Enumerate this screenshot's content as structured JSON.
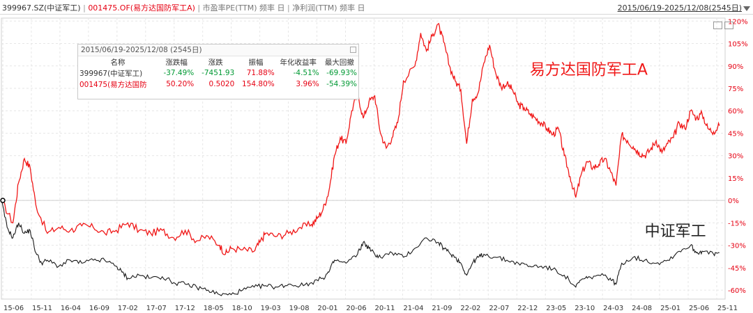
{
  "header": {
    "code1": "399967.SZ(中证军工)",
    "sep": "|",
    "code2": "001475.OF(易方达国防军工A)",
    "metric1": "市盈率PE(TTM) 频率 日",
    "metric2": "净利润(TTM) 频率 日",
    "range": "2015/06/19-2025/12/08(2545日)"
  },
  "stats_panel": {
    "title": "2015/06/19-2025/12/08 (2545日)",
    "columns": [
      "名称",
      "涨跌幅",
      "涨跌",
      "振幅",
      "年化收益率",
      "最大回撤"
    ],
    "rows": [
      {
        "name": "399967(中证军工)",
        "change_pct": "-37.49%",
        "change": "-7451.93",
        "amplitude": "71.88%",
        "annual": "-4.51%",
        "drawdown": "-69.93%"
      },
      {
        "name": "001475(易方达国防",
        "change_pct": "50.20%",
        "change": "0.5020",
        "amplitude": "154.80%",
        "annual": "3.96%",
        "drawdown": "-54.39%"
      }
    ]
  },
  "colors": {
    "fund": "#f01818",
    "index": "#1a1a1a",
    "grid": "#e6e6e6",
    "axis_text": "#e60012",
    "neg": "#009933"
  },
  "chart_data": {
    "type": "line",
    "title": "",
    "xlabel": "",
    "ylabel": "",
    "ylim": [
      -66,
      122
    ],
    "y_ticks": [
      "120%",
      "105%",
      "90%",
      "75%",
      "60%",
      "45%",
      "30%",
      "15%",
      "0%",
      "-15%",
      "-30%",
      "-45%",
      "-60%"
    ],
    "y_tick_values": [
      120,
      105,
      90,
      75,
      60,
      45,
      30,
      15,
      0,
      -15,
      -30,
      -45,
      -60
    ],
    "x_ticks": [
      "15-06",
      "15-11",
      "16-04",
      "16-09",
      "17-02",
      "17-07",
      "17-12",
      "18-05",
      "18-10",
      "19-03",
      "19-08",
      "20-01",
      "20-06",
      "20-11",
      "21-04",
      "21-09",
      "22-02",
      "22-07",
      "22-12",
      "23-05",
      "23-10",
      "24-03",
      "24-08",
      "25-01",
      "25-06",
      "25-11"
    ],
    "x_range": [
      0,
      126
    ],
    "grid": true,
    "series": [
      {
        "name": "易方达国防军工A",
        "label": "易方达国防军工A",
        "points": [
          [
            0,
            0
          ],
          [
            2,
            -15
          ],
          [
            3,
            12
          ],
          [
            4,
            28
          ],
          [
            5,
            22
          ],
          [
            6,
            -3
          ],
          [
            8,
            -22
          ],
          [
            10,
            -18
          ],
          [
            12,
            -20
          ],
          [
            14,
            -17
          ],
          [
            16,
            -18
          ],
          [
            18,
            -22
          ],
          [
            20,
            -20
          ],
          [
            22,
            -15
          ],
          [
            24,
            -20
          ],
          [
            26,
            -22
          ],
          [
            28,
            -20
          ],
          [
            30,
            -25
          ],
          [
            32,
            -20
          ],
          [
            34,
            -27
          ],
          [
            36,
            -24
          ],
          [
            38,
            -30
          ],
          [
            39,
            -36
          ],
          [
            40,
            -32
          ],
          [
            42,
            -33
          ],
          [
            44,
            -34
          ],
          [
            45,
            -28
          ],
          [
            46,
            -22
          ],
          [
            48,
            -24
          ],
          [
            50,
            -22
          ],
          [
            52,
            -18
          ],
          [
            54,
            -16
          ],
          [
            55,
            -12
          ],
          [
            56,
            -6
          ],
          [
            57,
            6
          ],
          [
            58,
            30
          ],
          [
            59,
            42
          ],
          [
            60,
            38
          ],
          [
            61,
            60
          ],
          [
            62,
            72
          ],
          [
            63,
            55
          ],
          [
            64,
            66
          ],
          [
            65,
            70
          ],
          [
            66,
            45
          ],
          [
            67,
            35
          ],
          [
            68,
            42
          ],
          [
            69,
            52
          ],
          [
            70,
            80
          ],
          [
            72,
            90
          ],
          [
            73,
            112
          ],
          [
            74,
            100
          ],
          [
            75,
            110
          ],
          [
            76,
            118
          ],
          [
            77,
            106
          ],
          [
            78,
            90
          ],
          [
            79,
            80
          ],
          [
            80,
            74
          ],
          [
            81,
            38
          ],
          [
            82,
            68
          ],
          [
            83,
            72
          ],
          [
            84,
            92
          ],
          [
            85,
            104
          ],
          [
            86,
            86
          ],
          [
            87,
            76
          ],
          [
            88,
            78
          ],
          [
            89,
            74
          ],
          [
            90,
            64
          ],
          [
            91,
            62
          ],
          [
            92,
            58
          ],
          [
            93,
            55
          ],
          [
            94,
            52
          ],
          [
            95,
            48
          ],
          [
            96,
            44
          ],
          [
            97,
            48
          ],
          [
            98,
            30
          ],
          [
            99,
            16
          ],
          [
            100,
            2
          ],
          [
            101,
            18
          ],
          [
            102,
            26
          ],
          [
            103,
            22
          ],
          [
            104,
            24
          ],
          [
            105,
            28
          ],
          [
            106,
            20
          ],
          [
            107,
            10
          ],
          [
            108,
            44
          ],
          [
            109,
            40
          ],
          [
            110,
            36
          ],
          [
            111,
            32
          ],
          [
            112,
            30
          ],
          [
            113,
            34
          ],
          [
            114,
            40
          ],
          [
            115,
            32
          ],
          [
            116,
            38
          ],
          [
            117,
            42
          ],
          [
            118,
            52
          ],
          [
            119,
            48
          ],
          [
            120,
            60
          ],
          [
            121,
            55
          ],
          [
            122,
            58
          ],
          [
            123,
            48
          ],
          [
            124,
            46
          ],
          [
            125,
            50
          ]
        ]
      },
      {
        "name": "中证军工",
        "label": "中证军工",
        "points": [
          [
            0,
            0
          ],
          [
            1,
            -18
          ],
          [
            2,
            -25
          ],
          [
            3,
            -15
          ],
          [
            4,
            -22
          ],
          [
            5,
            -20
          ],
          [
            6,
            -35
          ],
          [
            7,
            -42
          ],
          [
            8,
            -40
          ],
          [
            10,
            -44
          ],
          [
            12,
            -40
          ],
          [
            14,
            -42
          ],
          [
            16,
            -40
          ],
          [
            18,
            -40
          ],
          [
            20,
            -44
          ],
          [
            21,
            -48
          ],
          [
            22,
            -52
          ],
          [
            24,
            -50
          ],
          [
            26,
            -52
          ],
          [
            28,
            -51
          ],
          [
            30,
            -55
          ],
          [
            32,
            -56
          ],
          [
            34,
            -58
          ],
          [
            36,
            -60
          ],
          [
            38,
            -63
          ],
          [
            40,
            -63
          ],
          [
            42,
            -60
          ],
          [
            44,
            -58
          ],
          [
            46,
            -57
          ],
          [
            48,
            -58
          ],
          [
            50,
            -56
          ],
          [
            52,
            -57
          ],
          [
            54,
            -55
          ],
          [
            56,
            -52
          ],
          [
            57,
            -48
          ],
          [
            58,
            -40
          ],
          [
            60,
            -42
          ],
          [
            62,
            -36
          ],
          [
            63,
            -28
          ],
          [
            64,
            -32
          ],
          [
            65,
            -36
          ],
          [
            66,
            -38
          ],
          [
            68,
            -35
          ],
          [
            70,
            -38
          ],
          [
            72,
            -32
          ],
          [
            74,
            -25
          ],
          [
            76,
            -28
          ],
          [
            77,
            -32
          ],
          [
            78,
            -35
          ],
          [
            79,
            -38
          ],
          [
            80,
            -42
          ],
          [
            81,
            -50
          ],
          [
            82,
            -42
          ],
          [
            83,
            -38
          ],
          [
            84,
            -36
          ],
          [
            86,
            -38
          ],
          [
            88,
            -40
          ],
          [
            90,
            -42
          ],
          [
            92,
            -44
          ],
          [
            94,
            -44
          ],
          [
            96,
            -46
          ],
          [
            98,
            -50
          ],
          [
            100,
            -58
          ],
          [
            101,
            -53
          ],
          [
            102,
            -52
          ],
          [
            104,
            -50
          ],
          [
            106,
            -52
          ],
          [
            107,
            -56
          ],
          [
            108,
            -42
          ],
          [
            110,
            -38
          ],
          [
            112,
            -40
          ],
          [
            114,
            -42
          ],
          [
            116,
            -40
          ],
          [
            118,
            -34
          ],
          [
            120,
            -30
          ],
          [
            121,
            -35
          ],
          [
            122,
            -34
          ],
          [
            124,
            -36
          ],
          [
            125,
            -35
          ]
        ]
      }
    ]
  }
}
